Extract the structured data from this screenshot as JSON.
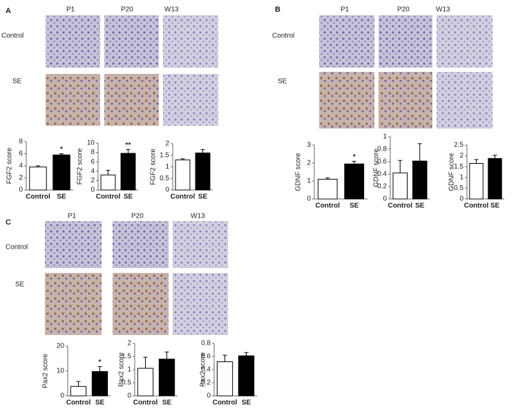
{
  "panels": [
    {
      "label": "A",
      "columns": [
        "P1",
        "P20",
        "W13"
      ],
      "rows": [
        "Control",
        "SE"
      ]
    },
    {
      "label": "B",
      "columns": [
        "P1",
        "P20",
        "W13"
      ],
      "rows": [
        "Control",
        "SE"
      ]
    },
    {
      "label": "C",
      "columns": [
        "P1",
        "P20",
        "W13"
      ],
      "rows": [
        "Control",
        "SE"
      ]
    }
  ],
  "chart_data": [
    {
      "type": "bar",
      "ylabel": "FGF2 score",
      "categories": [
        "Control",
        "SE"
      ],
      "values": [
        3.8,
        5.8
      ],
      "errors": [
        0.2,
        0.2
      ],
      "colors": [
        "#ffffff",
        "#000000"
      ],
      "ylim": [
        0,
        8
      ],
      "yticks": [
        0,
        2,
        4,
        6,
        8
      ],
      "annotation": "*"
    },
    {
      "type": "bar",
      "ylabel": "FGF2 score",
      "categories": [
        "Control",
        "SE"
      ],
      "values": [
        3.2,
        7.8
      ],
      "errors": [
        1.0,
        0.8
      ],
      "colors": [
        "#ffffff",
        "#000000"
      ],
      "ylim": [
        0,
        10
      ],
      "yticks": [
        0,
        2,
        4,
        6,
        8,
        10
      ],
      "annotation": "**"
    },
    {
      "type": "bar",
      "ylabel": "FGF2 score",
      "categories": [
        "Control",
        "SE"
      ],
      "values": [
        1.3,
        1.6
      ],
      "errors": [
        0.05,
        0.15
      ],
      "colors": [
        "#ffffff",
        "#000000"
      ],
      "ylim": [
        0,
        2
      ],
      "yticks": [
        0,
        0.5,
        1,
        1.5,
        2
      ]
    },
    {
      "type": "bar",
      "ylabel": "GDNF score",
      "categories": [
        "Control",
        "SE"
      ],
      "values": [
        1.1,
        1.95
      ],
      "errors": [
        0.07,
        0.15
      ],
      "colors": [
        "#ffffff",
        "#000000"
      ],
      "ylim": [
        0,
        3
      ],
      "yticks": [
        0,
        1,
        2,
        3
      ],
      "annotation": "*"
    },
    {
      "type": "bar",
      "ylabel": "GDNF score",
      "categories": [
        "Control",
        "SE"
      ],
      "values": [
        0.42,
        0.61
      ],
      "errors": [
        0.2,
        0.28
      ],
      "colors": [
        "#ffffff",
        "#000000"
      ],
      "ylim": [
        0,
        1
      ],
      "yticks": [
        0,
        0.2,
        0.4,
        0.6,
        0.8,
        1
      ]
    },
    {
      "type": "bar",
      "ylabel": "GDNF score",
      "categories": [
        "Control",
        "SE"
      ],
      "values": [
        1.65,
        1.88
      ],
      "errors": [
        0.18,
        0.15
      ],
      "colors": [
        "#ffffff",
        "#000000"
      ],
      "ylim": [
        0,
        2.5
      ],
      "yticks": [
        0,
        0.5,
        1,
        1.5,
        2,
        2.5
      ]
    },
    {
      "type": "bar",
      "ylabel": "Pax2 score",
      "categories": [
        "Control",
        "SE"
      ],
      "values": [
        3.8,
        9.8
      ],
      "errors": [
        2,
        2
      ],
      "colors": [
        "#ffffff",
        "#000000"
      ],
      "ylim": [
        0,
        20
      ],
      "yticks": [
        0,
        10,
        20
      ],
      "annotation": "*"
    },
    {
      "type": "bar",
      "ylabel": "Pax2 score",
      "categories": [
        "Control",
        "SE"
      ],
      "values": [
        1.05,
        1.4
      ],
      "errors": [
        0.42,
        0.27
      ],
      "colors": [
        "#ffffff",
        "#000000"
      ],
      "ylim": [
        0,
        2
      ],
      "yticks": [
        0,
        0.5,
        1,
        1.5,
        2
      ]
    },
    {
      "type": "bar",
      "ylabel": "Pax2 score",
      "categories": [
        "Control",
        "SE"
      ],
      "values": [
        0.52,
        0.61
      ],
      "errors": [
        0.1,
        0.05
      ],
      "colors": [
        "#ffffff",
        "#000000"
      ],
      "ylim": [
        0,
        0.8
      ],
      "yticks": [
        0,
        0.2,
        0.4,
        0.6,
        0.8
      ]
    }
  ]
}
